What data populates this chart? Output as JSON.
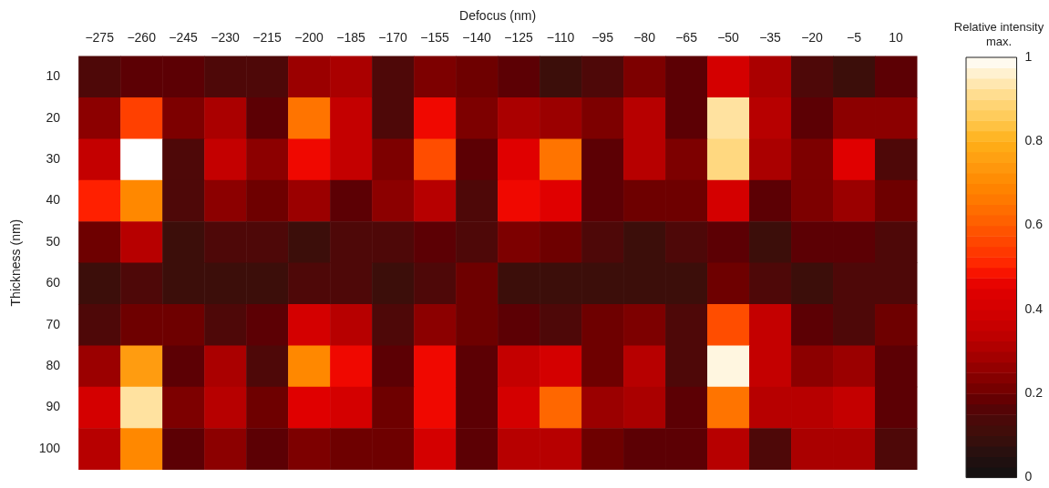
{
  "chart_data": {
    "type": "heatmap",
    "xlabel": "Defocus (nm)",
    "ylabel": "Thickness (nm)",
    "clabel": "Relative intensity max.",
    "categories": [
      "−275",
      "−260",
      "−245",
      "−230",
      "−215",
      "−200",
      "−185",
      "−170",
      "−155",
      "−140",
      "−125",
      "−110",
      "−95",
      "−80",
      "−65",
      "−50",
      "−35",
      "−20",
      "−5",
      "10"
    ],
    "y_categories": [
      "10",
      "20",
      "30",
      "40",
      "50",
      "60",
      "70",
      "80",
      "90",
      "100"
    ],
    "cells": [
      [
        0.15,
        0.175,
        0.175,
        0.15,
        0.15,
        0.275,
        0.3,
        0.15,
        0.225,
        0.2,
        0.175,
        0.1,
        0.15,
        0.225,
        0.175,
        0.4,
        0.3,
        0.15,
        0.1,
        0.175
      ],
      [
        0.25,
        0.55,
        0.225,
        0.3,
        0.175,
        0.65,
        0.35,
        0.15,
        0.475,
        0.225,
        0.3,
        0.275,
        0.225,
        0.325,
        0.175,
        0.925,
        0.325,
        0.175,
        0.25,
        0.25
      ],
      [
        0.35,
        1,
        0.15,
        0.35,
        0.25,
        0.475,
        0.35,
        0.225,
        0.575,
        0.175,
        0.45,
        0.65,
        0.175,
        0.325,
        0.225,
        0.9,
        0.3,
        0.225,
        0.45,
        0.15
      ],
      [
        0.5,
        0.7,
        0.15,
        0.25,
        0.2,
        0.275,
        0.175,
        0.25,
        0.325,
        0.15,
        0.475,
        0.45,
        0.175,
        0.2,
        0.2,
        0.4,
        0.175,
        0.225,
        0.275,
        0.2
      ],
      [
        0.2,
        0.325,
        0.1,
        0.15,
        0.15,
        0.1,
        0.15,
        0.15,
        0.175,
        0.15,
        0.225,
        0.2,
        0.15,
        0.1,
        0.15,
        0.175,
        0.1,
        0.175,
        0.175,
        0.15
      ],
      [
        0.1,
        0.15,
        0.1,
        0.1,
        0.1,
        0.15,
        0.15,
        0.1,
        0.15,
        0.2,
        0.1,
        0.1,
        0.1,
        0.1,
        0.1,
        0.2,
        0.15,
        0.1,
        0.15,
        0.15
      ],
      [
        0.15,
        0.2,
        0.2,
        0.15,
        0.175,
        0.4,
        0.325,
        0.15,
        0.25,
        0.2,
        0.175,
        0.15,
        0.2,
        0.225,
        0.15,
        0.575,
        0.35,
        0.175,
        0.15,
        0.2
      ],
      [
        0.275,
        0.75,
        0.175,
        0.3,
        0.15,
        0.7,
        0.475,
        0.175,
        0.475,
        0.175,
        0.35,
        0.4,
        0.2,
        0.325,
        0.15,
        0.975,
        0.35,
        0.25,
        0.275,
        0.175
      ],
      [
        0.4,
        0.925,
        0.225,
        0.325,
        0.2,
        0.45,
        0.4,
        0.2,
        0.475,
        0.175,
        0.4,
        0.625,
        0.275,
        0.3,
        0.175,
        0.65,
        0.325,
        0.325,
        0.35,
        0.175
      ],
      [
        0.325,
        0.7,
        0.175,
        0.25,
        0.175,
        0.225,
        0.2,
        0.2,
        0.4,
        0.175,
        0.325,
        0.325,
        0.2,
        0.175,
        0.175,
        0.325,
        0.15,
        0.3,
        0.3,
        0.15
      ]
    ],
    "clim": [
      0,
      1
    ],
    "cticks": [
      0,
      0.2,
      0.4,
      0.6,
      0.8,
      1
    ]
  }
}
